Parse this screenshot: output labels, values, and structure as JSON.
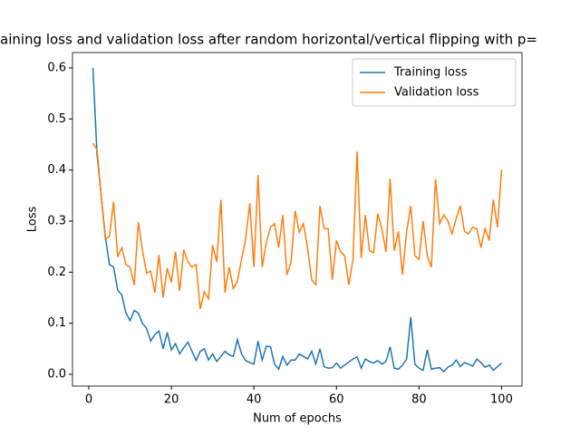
{
  "chart_data": {
    "type": "line",
    "title": "aining loss and validation loss after random horizontal/vertical flipping with p=",
    "x_label": "Num of epochs",
    "y_label": "Loss",
    "x": [
      1,
      2,
      3,
      4,
      5,
      6,
      7,
      8,
      9,
      10,
      11,
      12,
      13,
      14,
      15,
      16,
      17,
      18,
      19,
      20,
      21,
      22,
      23,
      24,
      25,
      26,
      27,
      28,
      29,
      30,
      31,
      32,
      33,
      34,
      35,
      36,
      37,
      38,
      39,
      40,
      41,
      42,
      43,
      44,
      45,
      46,
      47,
      48,
      49,
      50,
      51,
      52,
      53,
      54,
      55,
      56,
      57,
      58,
      59,
      60,
      61,
      62,
      63,
      64,
      65,
      66,
      67,
      68,
      69,
      70,
      71,
      72,
      73,
      74,
      75,
      76,
      77,
      78,
      79,
      80,
      81,
      82,
      83,
      84,
      85,
      86,
      87,
      88,
      89,
      90,
      91,
      92,
      93,
      94,
      95,
      96,
      97,
      98,
      99,
      100
    ],
    "series": [
      {
        "name": "Training loss",
        "color": "#1f77b4",
        "values": [
          0.6,
          0.43,
          0.35,
          0.27,
          0.215,
          0.21,
          0.165,
          0.155,
          0.12,
          0.105,
          0.125,
          0.12,
          0.1,
          0.09,
          0.065,
          0.078,
          0.085,
          0.05,
          0.082,
          0.048,
          0.06,
          0.04,
          0.052,
          0.063,
          0.045,
          0.027,
          0.045,
          0.05,
          0.028,
          0.04,
          0.025,
          0.035,
          0.045,
          0.038,
          0.035,
          0.068,
          0.04,
          0.027,
          0.023,
          0.02,
          0.065,
          0.028,
          0.055,
          0.054,
          0.02,
          0.01,
          0.035,
          0.018,
          0.028,
          0.028,
          0.04,
          0.035,
          0.03,
          0.045,
          0.02,
          0.05,
          0.015,
          0.012,
          0.013,
          0.022,
          0.012,
          0.018,
          0.024,
          0.03,
          0.034,
          0.012,
          0.03,
          0.025,
          0.022,
          0.027,
          0.02,
          0.025,
          0.054,
          0.012,
          0.01,
          0.018,
          0.03,
          0.112,
          0.02,
          0.012,
          0.008,
          0.048,
          0.01,
          0.012,
          0.013,
          0.005,
          0.014,
          0.018,
          0.028,
          0.015,
          0.023,
          0.02,
          0.016,
          0.03,
          0.023,
          0.014,
          0.018,
          0.008,
          0.015,
          0.022
        ]
      },
      {
        "name": "Validation loss",
        "color": "#ff7f0e",
        "values": [
          0.452,
          0.44,
          0.35,
          0.265,
          0.27,
          0.338,
          0.23,
          0.248,
          0.215,
          0.21,
          0.175,
          0.298,
          0.243,
          0.198,
          0.202,
          0.16,
          0.234,
          0.15,
          0.208,
          0.18,
          0.24,
          0.163,
          0.244,
          0.22,
          0.21,
          0.215,
          0.128,
          0.162,
          0.148,
          0.253,
          0.22,
          0.342,
          0.16,
          0.21,
          0.168,
          0.182,
          0.225,
          0.265,
          0.335,
          0.21,
          0.39,
          0.21,
          0.258,
          0.288,
          0.295,
          0.248,
          0.312,
          0.195,
          0.22,
          0.32,
          0.278,
          0.295,
          0.248,
          0.185,
          0.175,
          0.33,
          0.285,
          0.285,
          0.185,
          0.262,
          0.24,
          0.232,
          0.175,
          0.225,
          0.436,
          0.228,
          0.312,
          0.242,
          0.238,
          0.315,
          0.285,
          0.24,
          0.383,
          0.242,
          0.28,
          0.195,
          0.28,
          0.33,
          0.232,
          0.225,
          0.3,
          0.232,
          0.21,
          0.382,
          0.295,
          0.312,
          0.3,
          0.275,
          0.305,
          0.33,
          0.28,
          0.275,
          0.288,
          0.285,
          0.248,
          0.285,
          0.262,
          0.342,
          0.288,
          0.4
        ]
      }
    ],
    "xlim": [
      -3.95,
      104.95
    ],
    "ylim": [
      -0.023,
      0.63
    ],
    "xticks": [
      0,
      20,
      40,
      60,
      80,
      100
    ],
    "yticks": [
      {
        "value": 0,
        "label": "0.0"
      },
      0.1,
      0.2,
      0.3,
      0.4,
      0.5,
      0.6
    ],
    "legend": "upper right"
  }
}
